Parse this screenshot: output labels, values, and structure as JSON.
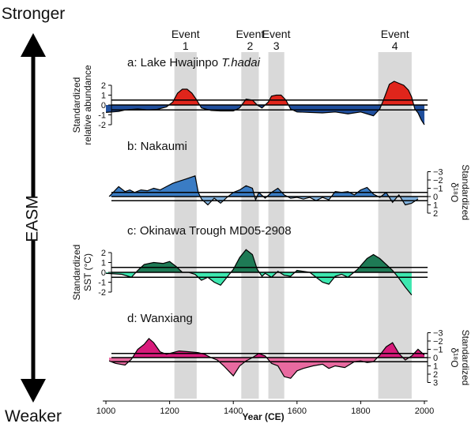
{
  "side": {
    "top": "Stronger",
    "bottom": "Weaker",
    "axis": "EASM"
  },
  "colors": {
    "event_band": "#d9d9d9"
  },
  "chart_data": {
    "type": "area",
    "xlabel": "Year (CE)",
    "xlim": [
      990,
      2010
    ],
    "xticks": [
      1000,
      1200,
      1400,
      1600,
      1800,
      2000
    ],
    "events": [
      {
        "name": "Event",
        "num": "1",
        "start": 1215,
        "end": 1285
      },
      {
        "name": "Event",
        "num": "2",
        "start": 1425,
        "end": 1480
      },
      {
        "name": "Event",
        "num": "3",
        "start": 1510,
        "end": 1560
      },
      {
        "name": "Event",
        "num": "4",
        "start": 1855,
        "end": 1960
      }
    ],
    "panels": [
      {
        "title": "a: Lake Hwajinpo ",
        "title_italic": "T.hadai",
        "ylabel": [
          "Standardized",
          "relative abundance"
        ],
        "axis": "left",
        "ylim": [
          -2,
          2
        ],
        "inverted": false,
        "yticks": [
          "-2",
          "-1",
          "0",
          "1",
          "2"
        ],
        "yticks_values": [
          -2,
          -1,
          0,
          1,
          2
        ],
        "hlines": [
          -0.5,
          0,
          0.5
        ],
        "pos_color": "#e0251b",
        "neg_color": "#1f4e9c",
        "x": [
          1000,
          1040,
          1060,
          1100,
          1130,
          1160,
          1190,
          1210,
          1225,
          1240,
          1255,
          1270,
          1285,
          1300,
          1330,
          1360,
          1400,
          1420,
          1440,
          1460,
          1475,
          1490,
          1510,
          1520,
          1535,
          1550,
          1565,
          1580,
          1600,
          1640,
          1680,
          1720,
          1760,
          1800,
          1840,
          1860,
          1875,
          1890,
          1905,
          1920,
          1935,
          1950,
          1960,
          1970,
          1980,
          1990,
          2000
        ],
        "y": [
          -0.75,
          -0.65,
          -0.5,
          -0.4,
          -0.5,
          -0.45,
          -0.2,
          0.3,
          1.2,
          1.6,
          1.6,
          1.2,
          0.5,
          -0.3,
          -0.55,
          -0.6,
          -0.6,
          -0.3,
          0.6,
          0.5,
          0.0,
          -0.3,
          0.3,
          0.9,
          1.0,
          1.0,
          0.5,
          -0.4,
          -0.7,
          -0.75,
          -0.8,
          -0.7,
          -0.9,
          -0.7,
          -1.1,
          -0.4,
          0.8,
          2.1,
          2.4,
          2.2,
          2.0,
          1.5,
          0.8,
          -0.4,
          -0.8,
          -1.5,
          -2.0
        ]
      },
      {
        "title": "b: Nakaumi",
        "title_italic": "",
        "ylabel": [
          "Standardized",
          "δ¹⁸O"
        ],
        "axis": "right",
        "ylim": [
          -3,
          2
        ],
        "inverted": true,
        "yticks": [
          "−3",
          "−2",
          "−1",
          "0",
          "1",
          "2"
        ],
        "yticks_values": [
          -3,
          -2,
          -1,
          0,
          1,
          2
        ],
        "hlines": [
          -0.5,
          0,
          0.5
        ],
        "pos_color": "#7fb0dc",
        "neg_color": "#3a7cc4",
        "x": [
          1010,
          1040,
          1060,
          1075,
          1090,
          1110,
          1130,
          1150,
          1170,
          1190,
          1210,
          1250,
          1280,
          1290,
          1300,
          1320,
          1340,
          1360,
          1380,
          1400,
          1420,
          1440,
          1460,
          1470,
          1480,
          1500,
          1520,
          1540,
          1560,
          1580,
          1600,
          1620,
          1640,
          1660,
          1680,
          1700,
          1720,
          1740,
          1760,
          1780,
          1800,
          1820,
          1840,
          1860,
          1880,
          1900,
          1920,
          1940,
          1960,
          1980
        ],
        "y": [
          0.0,
          -1.2,
          -0.6,
          -0.8,
          -0.5,
          -0.8,
          -0.7,
          -1.0,
          -0.8,
          -1.2,
          -1.6,
          -2.1,
          -2.5,
          -0.5,
          0.3,
          1.0,
          0.2,
          0.8,
          0.1,
          -0.5,
          -0.8,
          -1.3,
          -1.0,
          0.4,
          -0.5,
          0.2,
          -0.5,
          -1.0,
          -0.2,
          0.2,
          0.1,
          0.3,
          0.1,
          0.5,
          0.1,
          0.4,
          -0.6,
          -0.5,
          -0.6,
          -0.2,
          -0.8,
          -1.1,
          -0.3,
          0.1,
          -0.5,
          0.7,
          -0.2,
          1.0,
          0.8,
          0.3
        ]
      },
      {
        "title": "c: Okinawa Trough MD05-2908",
        "title_italic": "",
        "ylabel": [
          "Standardized",
          "SST (°C)"
        ],
        "axis": "left",
        "ylim": [
          -2,
          2
        ],
        "inverted": false,
        "yticks": [
          "-2",
          "-1",
          "0",
          "1",
          "2"
        ],
        "yticks_values": [
          -2,
          -1,
          0,
          1,
          2
        ],
        "hlines": [
          -0.5,
          0,
          0.5
        ],
        "pos_color": "#1e7a55",
        "neg_color": "#3de8b0",
        "x": [
          1000,
          1050,
          1080,
          1100,
          1120,
          1150,
          1180,
          1200,
          1220,
          1240,
          1260,
          1280,
          1300,
          1320,
          1340,
          1360,
          1380,
          1400,
          1420,
          1440,
          1460,
          1475,
          1490,
          1500,
          1520,
          1540,
          1560,
          1580,
          1600,
          1640,
          1680,
          1700,
          1720,
          1740,
          1760,
          1790,
          1820,
          1840,
          1860,
          1880,
          1900,
          1920,
          1940,
          1960
        ],
        "y": [
          -0.1,
          -0.2,
          -0.5,
          0.2,
          0.8,
          1.0,
          0.9,
          1.1,
          0.6,
          0.0,
          0.0,
          -0.2,
          -0.8,
          -0.5,
          -1.0,
          -1.3,
          -0.5,
          0.3,
          1.5,
          2.3,
          1.8,
          0.3,
          -0.4,
          -0.1,
          -0.5,
          0.1,
          -0.3,
          -0.4,
          0.2,
          0.0,
          -1.0,
          -1.2,
          -0.4,
          -0.2,
          -0.5,
          0.3,
          1.4,
          1.8,
          1.4,
          0.8,
          0.2,
          -0.6,
          -1.5,
          -2.3
        ]
      },
      {
        "title": "d: Wanxiang",
        "title_italic": "",
        "ylabel": [
          "Standardized",
          "δ¹⁸O"
        ],
        "axis": "right",
        "ylim": [
          -3,
          3
        ],
        "inverted": true,
        "yticks": [
          "−3",
          "−2",
          "−1",
          "0",
          "1",
          "2",
          "3"
        ],
        "yticks_values": [
          -3,
          -2,
          -1,
          0,
          1,
          2,
          3
        ],
        "hlines": [
          -0.5,
          0,
          0.5
        ],
        "pos_color": "#e86aa0",
        "neg_color": "#d81b7b",
        "x": [
          1010,
          1030,
          1060,
          1080,
          1100,
          1120,
          1135,
          1150,
          1170,
          1190,
          1210,
          1230,
          1260,
          1290,
          1310,
          1330,
          1350,
          1370,
          1390,
          1400,
          1420,
          1440,
          1460,
          1480,
          1500,
          1520,
          1540,
          1560,
          1580,
          1600,
          1620,
          1650,
          1680,
          1700,
          1720,
          1750,
          1780,
          1800,
          1820,
          1840,
          1860,
          1880,
          1900,
          1920,
          1940,
          1960,
          1980,
          2000
        ],
        "y": [
          0.4,
          0.7,
          0.9,
          0.2,
          -1.0,
          -1.6,
          -2.3,
          -1.8,
          -0.7,
          -0.4,
          -0.6,
          -0.8,
          -0.7,
          -0.6,
          -0.4,
          0.0,
          0.3,
          1.0,
          1.8,
          2.2,
          1.0,
          0.4,
          0.0,
          -0.5,
          -0.2,
          0.7,
          1.0,
          2.3,
          2.5,
          1.6,
          1.3,
          1.0,
          0.8,
          1.3,
          1.0,
          1.2,
          0.5,
          0.4,
          0.6,
          0.5,
          -0.3,
          -1.3,
          -1.8,
          -0.5,
          0.3,
          -0.2,
          -1.0,
          -0.3
        ]
      }
    ]
  }
}
